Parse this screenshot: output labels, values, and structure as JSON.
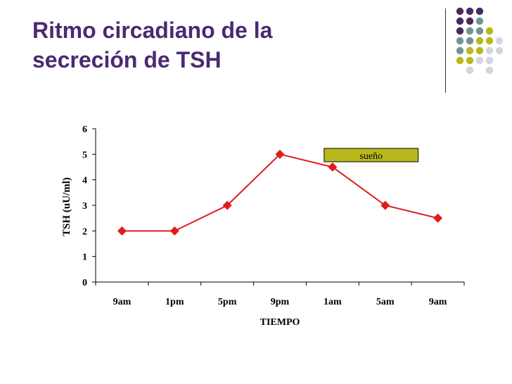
{
  "slide": {
    "title_line1": "Ritmo circadiano de la",
    "title_line2": "secreción de TSH"
  },
  "colors": {
    "title": "#4a2a72",
    "series": "#e01b1b",
    "annotation_fill": "#b8b81c",
    "dot_purple": "#4a2a5e",
    "dot_teal": "#6f9592",
    "dot_olive": "#b8b81c",
    "dot_gray": "#d4d4e2"
  },
  "decoration": {
    "dots": [
      [
        "purple",
        "purple",
        "purple",
        ""
      ],
      [
        "purple",
        "purple",
        "teal",
        ""
      ],
      [
        "purple",
        "teal",
        "teal",
        "olive"
      ],
      [
        "teal",
        "teal",
        "olive",
        "olive",
        "gray"
      ],
      [
        "teal",
        "olive",
        "olive",
        "gray",
        "gray"
      ],
      [
        "olive",
        "olive",
        "gray",
        "gray",
        ""
      ],
      [
        "",
        "gray",
        "",
        "gray",
        ""
      ]
    ]
  },
  "chart_data": {
    "type": "line",
    "categories": [
      "9am",
      "1pm",
      "5pm",
      "9pm",
      "1am",
      "5am",
      "9am"
    ],
    "series": [
      {
        "values": [
          2,
          2,
          3,
          5,
          4.5,
          3,
          2.5
        ]
      }
    ],
    "xlabel": "TIEMPO",
    "ylabel": "TSH (uU/ml)",
    "ylim": [
      0,
      6
    ],
    "yticks": [
      "0",
      "1",
      "2",
      "3",
      "4",
      "5",
      "6"
    ],
    "grid": false,
    "annotation": {
      "text": "sueño",
      "from_category": 4,
      "to_category": 6
    }
  }
}
